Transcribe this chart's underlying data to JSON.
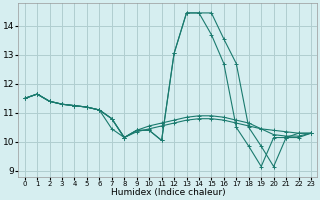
{
  "xlabel": "Humidex (Indice chaleur)",
  "background_color": "#d6eef0",
  "grid_color": "#b0cdd0",
  "line_color": "#1a7a6e",
  "marker": "+",
  "xlim": [
    -0.5,
    23.5
  ],
  "ylim": [
    8.8,
    14.8
  ],
  "yticks": [
    9,
    10,
    11,
    12,
    13,
    14
  ],
  "xticks": [
    0,
    1,
    2,
    3,
    4,
    5,
    6,
    7,
    8,
    9,
    10,
    11,
    12,
    13,
    14,
    15,
    16,
    17,
    18,
    19,
    20,
    21,
    22,
    23
  ],
  "series": [
    [
      11.5,
      11.65,
      11.4,
      11.3,
      11.25,
      11.2,
      11.1,
      10.8,
      10.15,
      10.4,
      10.4,
      10.05,
      13.05,
      14.45,
      14.45,
      14.45,
      13.55,
      12.7,
      10.5,
      9.85,
      9.15,
      10.15,
      10.15,
      10.3
    ],
    [
      11.5,
      11.65,
      11.4,
      11.3,
      11.25,
      11.2,
      11.1,
      10.45,
      10.15,
      10.35,
      10.45,
      10.55,
      10.65,
      10.75,
      10.8,
      10.8,
      10.75,
      10.65,
      10.55,
      10.45,
      10.4,
      10.35,
      10.3,
      10.3
    ],
    [
      11.5,
      11.65,
      11.4,
      11.3,
      11.25,
      11.2,
      11.1,
      10.8,
      10.15,
      10.4,
      10.55,
      10.65,
      10.75,
      10.85,
      10.9,
      10.9,
      10.85,
      10.75,
      10.65,
      10.45,
      10.25,
      10.2,
      10.2,
      10.3
    ],
    [
      11.5,
      11.65,
      11.4,
      11.3,
      11.25,
      11.2,
      11.1,
      10.8,
      10.15,
      10.4,
      10.4,
      10.05,
      13.05,
      14.45,
      14.45,
      13.7,
      12.7,
      10.5,
      9.85,
      9.15,
      10.15,
      10.15,
      10.3,
      10.3
    ]
  ]
}
